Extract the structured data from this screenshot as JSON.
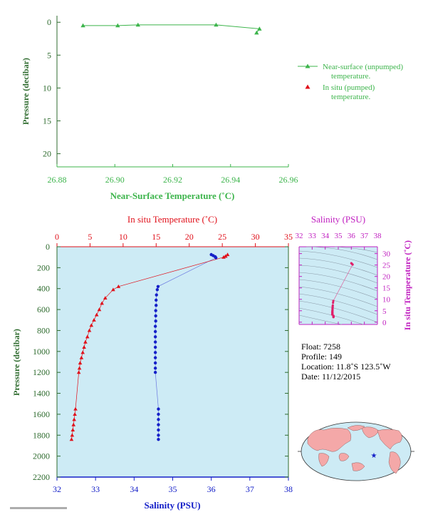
{
  "top_chart": {
    "xlabel": "Near-Surface Temperature (˚C)",
    "ylabel": "Pressure (decibar)",
    "xticks": [
      "26.88",
      "26.90",
      "26.92",
      "26.94",
      "26.96"
    ],
    "yticks": [
      "0",
      "5",
      "10",
      "15",
      "20"
    ],
    "legend": {
      "unpumped_line1": "Near-surface (unpumped)",
      "unpumped_line2": "temperature.",
      "pumped_line1": "In situ (pumped)",
      "pumped_line2": "temperature."
    }
  },
  "main_chart": {
    "top_xlabel": "In situ Temperature (˚C)",
    "bottom_xlabel": "Salinity (PSU)",
    "ylabel": "Pressure (decibar)",
    "temp_ticks": [
      "0",
      "5",
      "10",
      "15",
      "20",
      "25",
      "30",
      "35"
    ],
    "sal_ticks": [
      "32",
      "33",
      "34",
      "35",
      "36",
      "37",
      "38"
    ],
    "pressure_ticks": [
      "0",
      "200",
      "400",
      "600",
      "800",
      "1000",
      "1200",
      "1400",
      "1600",
      "1800",
      "2000",
      "2200"
    ]
  },
  "ts_chart": {
    "xlabel": "Salinity (PSU)",
    "ylabel": "In situ Temperature (˚C)",
    "xticks": [
      "32",
      "33",
      "34",
      "35",
      "36",
      "37",
      "38"
    ],
    "yticks": [
      "0",
      "5",
      "10",
      "15",
      "20",
      "25",
      "30"
    ]
  },
  "info": {
    "float": "Float:  7258",
    "profile": "Profile:  149",
    "location": "Location:  11.8˚S  123.5˚W",
    "date": "Date:  11/12/2015"
  },
  "colors": {
    "green": "#3cb44b",
    "red": "#e0101a",
    "blue": "#1520c8",
    "magenta": "#c020c0",
    "panel_bg": "#cdebf5",
    "axis_green": "#2e6b2e"
  },
  "chart_data": [
    {
      "type": "line",
      "title": "",
      "xlabel": "Near-Surface Temperature (˚C)",
      "ylabel": "Pressure (decibar)",
      "xlim": [
        26.88,
        26.96
      ],
      "ylim": [
        22,
        -1
      ],
      "series": [
        {
          "name": "Near-surface (unpumped) temperature.",
          "points": [
            [
              26.889,
              0.5
            ],
            [
              26.901,
              0.5
            ],
            [
              26.908,
              0.4
            ],
            [
              26.935,
              0.4
            ],
            [
              26.95,
              1.0
            ],
            [
              26.949,
              1.6
            ]
          ]
        },
        {
          "name": "In situ (pumped) temperature.",
          "points": []
        }
      ]
    },
    {
      "type": "line",
      "title": "",
      "xlabel": "Salinity (PSU)",
      "x2label": "In situ Temperature (˚C)",
      "ylabel": "Pressure (decibar)",
      "ylim": [
        2200,
        0
      ],
      "temperature_xlim": [
        0,
        35
      ],
      "salinity_xlim": [
        32,
        38
      ],
      "series": [
        {
          "name": "In situ Temperature (˚C)",
          "points": [
            [
              25.8,
              75
            ],
            [
              25.5,
              90
            ],
            [
              25.2,
              100
            ],
            [
              9.3,
              380
            ],
            [
              8.5,
              410
            ],
            [
              7.3,
              490
            ],
            [
              6.8,
              540
            ],
            [
              6.4,
              600
            ],
            [
              6.0,
              650
            ],
            [
              5.6,
              700
            ],
            [
              5.2,
              750
            ],
            [
              4.9,
              800
            ],
            [
              4.6,
              860
            ],
            [
              4.3,
              910
            ],
            [
              4.1,
              960
            ],
            [
              3.9,
              1010
            ],
            [
              3.7,
              1060
            ],
            [
              3.5,
              1110
            ],
            [
              3.4,
              1160
            ],
            [
              3.3,
              1200
            ],
            [
              2.8,
              1550
            ],
            [
              2.7,
              1600
            ],
            [
              2.6,
              1650
            ],
            [
              2.5,
              1700
            ],
            [
              2.4,
              1750
            ],
            [
              2.3,
              1800
            ],
            [
              2.2,
              1840
            ]
          ]
        },
        {
          "name": "Salinity (PSU)",
          "points": [
            [
              36.0,
              75
            ],
            [
              36.05,
              85
            ],
            [
              36.1,
              95
            ],
            [
              36.12,
              105
            ],
            [
              34.62,
              380
            ],
            [
              34.6,
              410
            ],
            [
              34.58,
              460
            ],
            [
              34.57,
              510
            ],
            [
              34.57,
              560
            ],
            [
              34.56,
              610
            ],
            [
              34.56,
              660
            ],
            [
              34.56,
              710
            ],
            [
              34.55,
              760
            ],
            [
              34.55,
              810
            ],
            [
              34.55,
              860
            ],
            [
              34.55,
              910
            ],
            [
              34.55,
              960
            ],
            [
              34.55,
              1010
            ],
            [
              34.55,
              1060
            ],
            [
              34.55,
              1110
            ],
            [
              34.55,
              1160
            ],
            [
              34.55,
              1200
            ],
            [
              34.63,
              1550
            ],
            [
              34.63,
              1600
            ],
            [
              34.63,
              1650
            ],
            [
              34.63,
              1700
            ],
            [
              34.63,
              1750
            ],
            [
              34.63,
              1800
            ],
            [
              34.63,
              1840
            ]
          ]
        }
      ]
    },
    {
      "type": "scatter",
      "title": "",
      "xlabel": "Salinity (PSU)",
      "ylabel": "In situ Temperature (˚C)",
      "xlim": [
        32,
        38
      ],
      "ylim": [
        -1,
        33
      ],
      "series": [
        {
          "name": "T-S",
          "points": [
            [
              36.0,
              25.8
            ],
            [
              36.05,
              25.5
            ],
            [
              36.1,
              25.2
            ],
            [
              34.62,
              9.3
            ],
            [
              34.6,
              8.5
            ],
            [
              34.58,
              7.3
            ],
            [
              34.57,
              6.8
            ],
            [
              34.57,
              6.4
            ],
            [
              34.56,
              6.0
            ],
            [
              34.56,
              5.6
            ],
            [
              34.56,
              5.2
            ],
            [
              34.55,
              4.9
            ],
            [
              34.55,
              4.6
            ],
            [
              34.55,
              4.3
            ],
            [
              34.55,
              4.1
            ],
            [
              34.55,
              3.9
            ],
            [
              34.55,
              3.7
            ],
            [
              34.55,
              3.5
            ],
            [
              34.55,
              3.4
            ],
            [
              34.55,
              3.3
            ],
            [
              34.63,
              2.8
            ],
            [
              34.63,
              2.7
            ],
            [
              34.63,
              2.6
            ],
            [
              34.63,
              2.5
            ],
            [
              34.63,
              2.4
            ],
            [
              34.63,
              2.3
            ],
            [
              34.63,
              2.2
            ]
          ]
        }
      ]
    }
  ]
}
